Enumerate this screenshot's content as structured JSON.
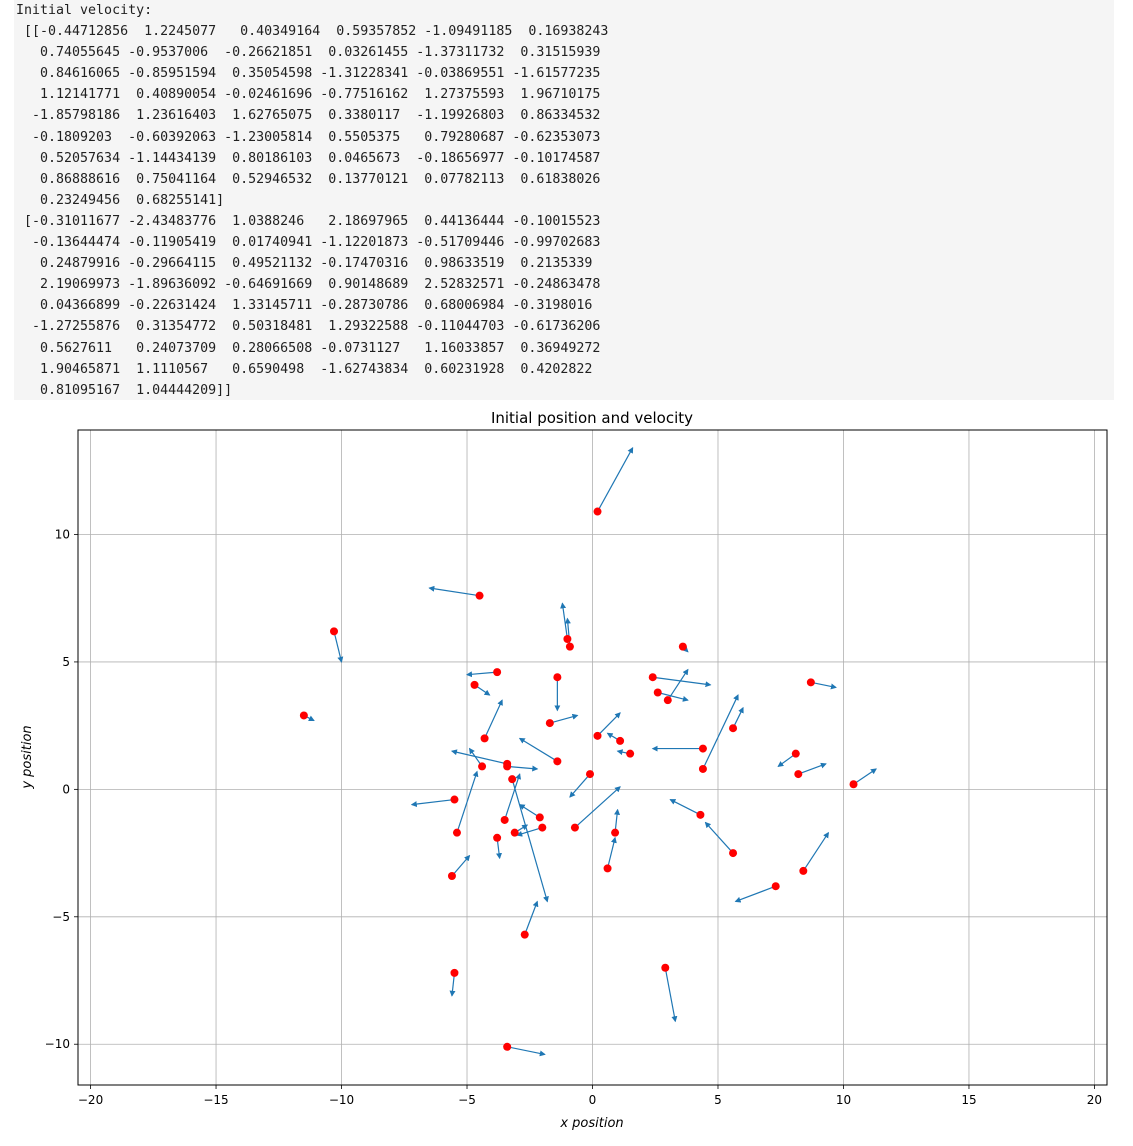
{
  "output": {
    "lines": [
      "Initial velocity:",
      " [[-0.44712856  1.2245077   0.40349164  0.59357852 -1.09491185  0.16938243",
      "   0.74055645 -0.9537006  -0.26621851  0.03261455 -1.37311732  0.31515939",
      "   0.84616065 -0.85951594  0.35054598 -1.31228341 -0.03869551 -1.61577235",
      "   1.12141771  0.40890054 -0.02461696 -0.77516162  1.27375593  1.96710175",
      "  -1.85798186  1.23616403  1.62765075  0.3380117  -1.19926803  0.86334532",
      "  -0.1809203  -0.60392063 -1.23005814  0.5505375   0.79280687 -0.62353073",
      "   0.52057634 -1.14434139  0.80186103  0.0465673  -0.18656977 -0.10174587",
      "   0.86888616  0.75041164  0.52946532  0.13770121  0.07782113  0.61838026",
      "   0.23249456  0.68255141]",
      " [-0.31011677 -2.43483776  1.0388246   2.18697965  0.44136444 -0.10015523",
      "  -0.13644474 -0.11905419  0.01740941 -1.12201873 -0.51709446 -0.99702683",
      "   0.24879916 -0.29664115  0.49521132 -0.17470316  0.98633519  0.2135339",
      "   2.19069973 -1.89636092 -0.64691669  0.90148689  2.52832571 -0.24863478",
      "   0.04366899 -0.22631424  1.33145711 -0.28730786  0.68006984 -0.3198016",
      "  -1.27255876  0.31354772  0.50318481  1.29322588 -0.11044703 -0.61736206",
      "   0.5627611   0.24073709  0.28066508 -0.0731127   1.16033857  0.36949272",
      "   1.90465871  1.1110567   0.6590498  -1.62743834  0.60231928  0.4202822",
      "   0.81095167  1.04444209]]"
    ]
  },
  "chart_data": {
    "type": "scatter",
    "title": "Initial position and velocity",
    "xlabel": "x position",
    "ylabel": "y position",
    "xlim": [
      -20.5,
      20.5
    ],
    "ylim": [
      -11.6,
      14.1
    ],
    "xticks": [
      -20,
      -15,
      -10,
      -5,
      0,
      5,
      10,
      15,
      20
    ],
    "yticks": [
      -10,
      -5,
      0,
      5,
      10
    ],
    "tick_labels_x": [
      "−20",
      "−15",
      "−10",
      "−5",
      "0",
      "5",
      "10",
      "15",
      "20"
    ],
    "tick_labels_y": [
      "−10",
      "−5",
      "0",
      "5",
      "10"
    ],
    "grid": true,
    "point_color": "#ff0000",
    "arrow_color": "#1f77b4",
    "points": [
      {
        "x": 0.2,
        "y": 10.9,
        "vx": 1.4,
        "vy": 2.5
      },
      {
        "x": -4.5,
        "y": 7.6,
        "vx": -2.0,
        "vy": 0.3
      },
      {
        "x": -10.3,
        "y": 6.2,
        "vx": 0.3,
        "vy": -1.2
      },
      {
        "x": -1.0,
        "y": 5.9,
        "vx": -0.2,
        "vy": 1.4
      },
      {
        "x": -0.9,
        "y": 5.6,
        "vx": -0.1,
        "vy": 1.1
      },
      {
        "x": 3.6,
        "y": 5.6,
        "vx": 0.2,
        "vy": -0.2
      },
      {
        "x": -3.8,
        "y": 4.6,
        "vx": -1.2,
        "vy": -0.1
      },
      {
        "x": -1.4,
        "y": 4.4,
        "vx": 0.0,
        "vy": -1.3
      },
      {
        "x": 2.4,
        "y": 4.4,
        "vx": 2.3,
        "vy": -0.3
      },
      {
        "x": -4.7,
        "y": 4.1,
        "vx": 0.6,
        "vy": -0.4
      },
      {
        "x": 8.7,
        "y": 4.2,
        "vx": 1.0,
        "vy": -0.2
      },
      {
        "x": 2.6,
        "y": 3.8,
        "vx": 1.2,
        "vy": -0.3
      },
      {
        "x": 3.0,
        "y": 3.5,
        "vx": 0.8,
        "vy": 1.2
      },
      {
        "x": -11.5,
        "y": 2.9,
        "vx": 0.4,
        "vy": -0.2
      },
      {
        "x": -1.7,
        "y": 2.6,
        "vx": 1.1,
        "vy": 0.3
      },
      {
        "x": 5.6,
        "y": 2.4,
        "vx": 0.4,
        "vy": 0.8
      },
      {
        "x": -4.3,
        "y": 2.0,
        "vx": 0.7,
        "vy": 1.5
      },
      {
        "x": 0.2,
        "y": 2.1,
        "vx": 0.9,
        "vy": 0.9
      },
      {
        "x": 1.1,
        "y": 1.9,
        "vx": -0.5,
        "vy": 0.3
      },
      {
        "x": 1.5,
        "y": 1.4,
        "vx": -0.5,
        "vy": 0.1
      },
      {
        "x": 4.4,
        "y": 1.6,
        "vx": -2.0,
        "vy": 0.0
      },
      {
        "x": 8.1,
        "y": 1.4,
        "vx": -0.7,
        "vy": -0.5
      },
      {
        "x": -1.4,
        "y": 1.1,
        "vx": -1.5,
        "vy": 0.9
      },
      {
        "x": 4.4,
        "y": 0.8,
        "vx": 1.4,
        "vy": 2.9
      },
      {
        "x": -4.4,
        "y": 0.9,
        "vx": -0.5,
        "vy": 0.7
      },
      {
        "x": -3.4,
        "y": 0.9,
        "vx": 1.2,
        "vy": -0.1
      },
      {
        "x": -3.4,
        "y": 1.0,
        "vx": -2.2,
        "vy": 0.5
      },
      {
        "x": 8.2,
        "y": 0.6,
        "vx": 1.1,
        "vy": 0.4
      },
      {
        "x": -0.1,
        "y": 0.6,
        "vx": -0.8,
        "vy": -0.9
      },
      {
        "x": 10.4,
        "y": 0.2,
        "vx": 0.9,
        "vy": 0.6
      },
      {
        "x": -3.2,
        "y": 0.4,
        "vx": 1.4,
        "vy": -4.8
      },
      {
        "x": -5.5,
        "y": -0.4,
        "vx": -1.7,
        "vy": -0.2
      },
      {
        "x": 4.3,
        "y": -1.0,
        "vx": -1.2,
        "vy": 0.6
      },
      {
        "x": -2.1,
        "y": -1.1,
        "vx": -0.8,
        "vy": 0.5
      },
      {
        "x": -3.5,
        "y": -1.2,
        "vx": 0.6,
        "vy": 1.8
      },
      {
        "x": -0.7,
        "y": -1.5,
        "vx": 1.8,
        "vy": 1.6
      },
      {
        "x": -2.0,
        "y": -1.5,
        "vx": -1.0,
        "vy": -0.3
      },
      {
        "x": -5.4,
        "y": -1.7,
        "vx": 0.8,
        "vy": 2.4
      },
      {
        "x": 0.9,
        "y": -1.7,
        "vx": 0.1,
        "vy": 0.9
      },
      {
        "x": -3.1,
        "y": -1.7,
        "vx": 0.5,
        "vy": 0.3
      },
      {
        "x": -3.8,
        "y": -1.9,
        "vx": 0.1,
        "vy": -0.8
      },
      {
        "x": 5.6,
        "y": -2.5,
        "vx": -1.1,
        "vy": 1.2
      },
      {
        "x": 0.6,
        "y": -3.1,
        "vx": 0.3,
        "vy": 1.2
      },
      {
        "x": 8.4,
        "y": -3.2,
        "vx": 1.0,
        "vy": 1.5
      },
      {
        "x": -5.6,
        "y": -3.4,
        "vx": 0.7,
        "vy": 0.8
      },
      {
        "x": 7.3,
        "y": -3.8,
        "vx": -1.6,
        "vy": -0.6
      },
      {
        "x": -2.7,
        "y": -5.7,
        "vx": 0.5,
        "vy": 1.3
      },
      {
        "x": 2.9,
        "y": -7.0,
        "vx": 0.4,
        "vy": -2.1
      },
      {
        "x": -5.5,
        "y": -7.2,
        "vx": -0.1,
        "vy": -0.9
      },
      {
        "x": -3.4,
        "y": -10.1,
        "vx": 1.5,
        "vy": -0.3
      }
    ]
  }
}
